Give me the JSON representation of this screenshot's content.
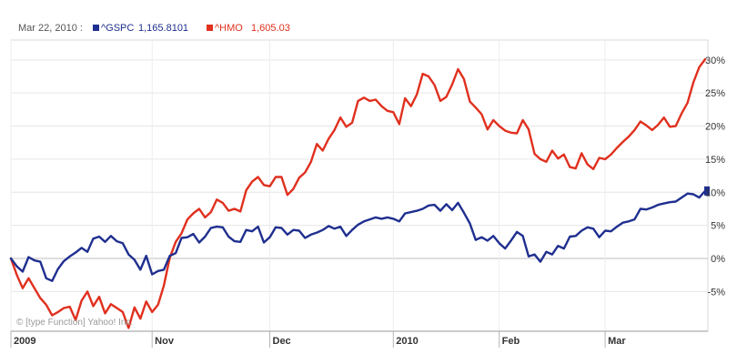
{
  "legend": {
    "date": "Mar 22, 2010 :",
    "items": [
      {
        "symbol": "^GSPC",
        "value": "1,165.8101",
        "color": "#1f2f8f"
      },
      {
        "symbol": "^HMO",
        "value": "1,605.03",
        "color": "#e0301e"
      }
    ]
  },
  "credit": "© [type Function] Yahoo! Inc.",
  "chart_data": {
    "type": "line",
    "x_labels": [
      {
        "label": "2009",
        "index": 0
      },
      {
        "label": "Nov",
        "index": 24
      },
      {
        "label": "Dec",
        "index": 44
      },
      {
        "label": "2010",
        "index": 65
      },
      {
        "label": "Feb",
        "index": 83
      },
      {
        "label": "Mar",
        "index": 101
      }
    ],
    "y_ticks": [
      -5,
      0,
      5,
      10,
      15,
      20,
      25,
      30
    ],
    "y_tick_labels": [
      "-5%",
      "0%",
      "5%",
      "10%",
      "15%",
      "20%",
      "25%",
      "30%"
    ],
    "ylim": [
      -11,
      33
    ],
    "grid": true,
    "series": [
      {
        "name": "^GSPC",
        "color": "#1f2f8f",
        "values": [
          0,
          -1.2,
          -2,
          0.2,
          -0.3,
          -0.5,
          -3,
          -3.4,
          -1.6,
          -0.4,
          0.3,
          0.9,
          1.6,
          1,
          3,
          3.3,
          2.5,
          3.4,
          2.6,
          2.3,
          0.6,
          -0.2,
          -1.7,
          0.4,
          -2.4,
          -1.9,
          -1.7,
          0.4,
          0.8,
          3.1,
          3.2,
          3.7,
          2.4,
          3.3,
          4.6,
          4.8,
          4.7,
          3.3,
          2.6,
          2.5,
          4.3,
          4.1,
          4.8,
          2.4,
          3.2,
          4.7,
          4.6,
          3.6,
          4.3,
          4.2,
          3.1,
          3.6,
          3.9,
          4.3,
          4.9,
          4.5,
          4.8,
          3.4,
          4.3,
          5.1,
          5.6,
          5.9,
          6.2,
          6,
          6.2,
          6,
          5.6,
          6.8,
          7,
          7.2,
          7.5,
          8,
          8.1,
          7.2,
          8.2,
          7.3,
          8.4,
          6.9,
          5.3,
          2.8,
          3.2,
          2.7,
          3.4,
          2.3,
          1.5,
          2.7,
          4,
          3.4,
          0.3,
          0.6,
          -0.5,
          1,
          0.6,
          1.9,
          1.5,
          3.3,
          3.4,
          4.2,
          4.7,
          4.5,
          3.2,
          4.2,
          4.1,
          4.8,
          5.4,
          5.6,
          5.9,
          7.5,
          7.4,
          7.7,
          8.1,
          8.3,
          8.5,
          8.6,
          9.2,
          9.8,
          9.7,
          9.2,
          10.2
        ]
      },
      {
        "name": "^HMO",
        "color": "#e0301e",
        "values": [
          0,
          -2.5,
          -4.5,
          -3,
          -4.5,
          -6,
          -7,
          -8.6,
          -8.1,
          -7.5,
          -7.3,
          -9.3,
          -6.4,
          -5,
          -7.2,
          -5.8,
          -8.3,
          -6.9,
          -7.5,
          -8.1,
          -10.5,
          -7.4,
          -9.1,
          -6.5,
          -8.1,
          -7,
          -4.1,
          0.1,
          2.5,
          3.8,
          5.9,
          6.8,
          7.5,
          6.2,
          7,
          8.9,
          8.4,
          7.2,
          7.5,
          7.1,
          10.3,
          11.6,
          12.3,
          11.1,
          10.9,
          12.3,
          12.3,
          9.6,
          10.5,
          12.2,
          13,
          14.6,
          17.3,
          16.3,
          18.1,
          19.4,
          21.3,
          19.9,
          20.5,
          23.8,
          24.3,
          23.8,
          24,
          23,
          22.3,
          22.1,
          20.3,
          24.2,
          23,
          24.8,
          27.9,
          27.5,
          26.2,
          23.8,
          24.4,
          26.3,
          28.6,
          27.1,
          23.7,
          22.8,
          21.8,
          19.5,
          20.9,
          20,
          19.3,
          19,
          18.9,
          20.9,
          19.5,
          15.8,
          15,
          14.6,
          16.3,
          15.1,
          15.7,
          13.8,
          13.6,
          15.9,
          14.2,
          13.5,
          15.2,
          15,
          15.7,
          16.7,
          17.6,
          18.4,
          19.4,
          20.7,
          20.1,
          19.4,
          20.2,
          21.3,
          19.9,
          20,
          21.9,
          23.5,
          26.6,
          28.9,
          30.1
        ]
      }
    ]
  }
}
